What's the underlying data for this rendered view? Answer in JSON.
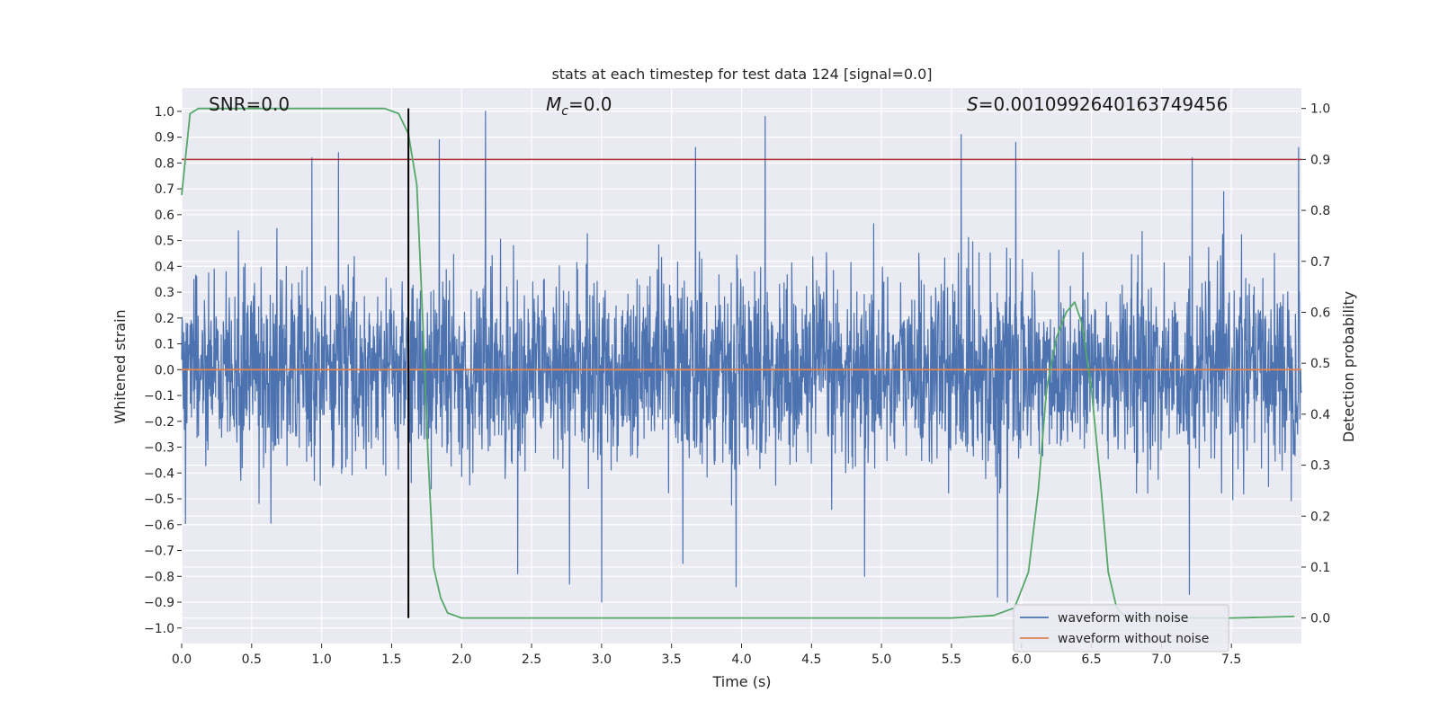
{
  "chart_data": {
    "type": "line",
    "title": "stats at each timestep for test data 124 [signal=0.0]",
    "xlabel": "Time (s)",
    "ylabel_left": "Whitened strain",
    "ylabel_right": "Detection probability",
    "xlim": [
      0.0,
      8.0
    ],
    "ylim_left": [
      -1.06,
      1.09
    ],
    "ylim_right": [
      -0.05,
      1.04
    ],
    "x_ticks": [
      "0.0",
      "0.5",
      "1.0",
      "1.5",
      "2.0",
      "2.5",
      "3.0",
      "3.5",
      "4.0",
      "4.5",
      "5.0",
      "5.5",
      "6.0",
      "6.5",
      "7.0",
      "7.5"
    ],
    "y_left_ticks": [
      "1.0",
      "0.9",
      "0.8",
      "0.7",
      "0.6",
      "0.5",
      "0.4",
      "0.3",
      "0.2",
      "0.1",
      "0.0",
      "-0.1",
      "-0.2",
      "-0.3",
      "-0.4",
      "-0.5",
      "-0.6",
      "-0.7",
      "-0.8",
      "-0.9",
      "-1.0"
    ],
    "y_right_ticks": [
      "1.0",
      "0.9",
      "0.8",
      "0.7",
      "0.6",
      "0.5",
      "0.4",
      "0.3",
      "0.2",
      "0.1",
      "0.0"
    ],
    "annotations": {
      "snr": "SNR=0.0",
      "mc_symbol": "M",
      "mc_sub": "c",
      "mc_value": "=0.0",
      "s_symbol": "S",
      "s_value": "=0.0010992640163749456"
    },
    "threshold": {
      "value": 0.9,
      "axis": "right",
      "color": "#b03030"
    },
    "vertical_marker": {
      "x": 1.62,
      "color": "#000000"
    },
    "series": [
      {
        "name": "waveform with noise",
        "color": "#4c72b0",
        "axis": "left",
        "description_envelope": {
          "noise_sigma": 0.18,
          "spikes": [
            [
              0.93,
              0.82
            ],
            [
              1.12,
              0.84
            ],
            [
              1.84,
              0.89
            ],
            [
              2.17,
              1.0
            ],
            [
              3.67,
              0.86
            ],
            [
              4.17,
              0.98
            ],
            [
              5.57,
              0.91
            ],
            [
              5.96,
              0.88
            ],
            [
              7.22,
              0.82
            ],
            [
              7.98,
              0.86
            ],
            [
              3.0,
              -0.9
            ],
            [
              5.9,
              -0.9
            ],
            [
              7.2,
              -0.87
            ],
            [
              4.88,
              -0.8
            ],
            [
              2.77,
              -0.83
            ],
            [
              3.96,
              -0.84
            ],
            [
              2.4,
              -0.79
            ],
            [
              5.83,
              -0.88
            ]
          ]
        }
      },
      {
        "name": "waveform without noise",
        "color": "#dd8452",
        "axis": "left",
        "x": [
          0.0,
          8.0
        ],
        "y": [
          0.0,
          0.0
        ]
      },
      {
        "name": "",
        "color": "#55a868",
        "axis": "right",
        "x": [
          0.0,
          0.06,
          0.12,
          0.3,
          0.8,
          1.3,
          1.45,
          1.55,
          1.62,
          1.68,
          1.72,
          1.76,
          1.8,
          1.85,
          1.9,
          2.0,
          3.0,
          4.0,
          5.0,
          5.5,
          5.8,
          5.95,
          6.05,
          6.12,
          6.18,
          6.25,
          6.32,
          6.38,
          6.43,
          6.5,
          6.57,
          6.62,
          6.68,
          6.75,
          7.0,
          7.5,
          7.95
        ],
        "y": [
          0.83,
          0.99,
          1.0,
          1.0,
          1.0,
          1.0,
          1.0,
          0.99,
          0.95,
          0.85,
          0.6,
          0.32,
          0.1,
          0.04,
          0.01,
          0.0,
          0.0,
          0.0,
          0.0,
          0.0,
          0.005,
          0.02,
          0.09,
          0.25,
          0.45,
          0.55,
          0.6,
          0.62,
          0.58,
          0.45,
          0.25,
          0.09,
          0.02,
          0.0,
          0.0,
          0.0,
          0.003
        ]
      }
    ],
    "legend": {
      "placement": "lower-right",
      "entries": [
        {
          "label": "waveform with noise",
          "color": "#4c72b0"
        },
        {
          "label": "waveform without noise",
          "color": "#dd8452"
        }
      ]
    },
    "grid": true,
    "style": {
      "plot_bg": "#eaeaf2",
      "grid_color": "#ffffff"
    }
  }
}
